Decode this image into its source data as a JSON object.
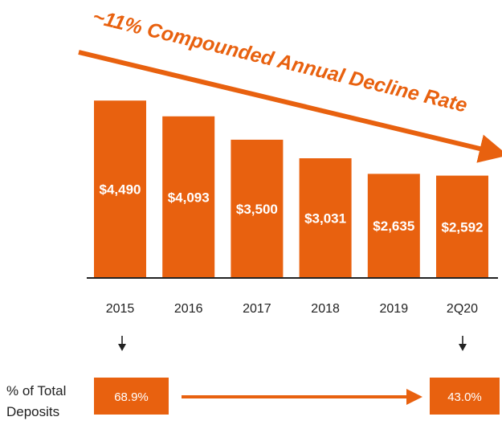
{
  "colors": {
    "accent": "#E8610F",
    "axis": "#222222",
    "text": "#222222",
    "on_accent": "#ffffff"
  },
  "chart_data": {
    "type": "bar",
    "title": "~11% Compounded Annual Decline Rate",
    "categories": [
      "2015",
      "2016",
      "2017",
      "2018",
      "2019",
      "2Q20"
    ],
    "values": [
      4490,
      4093,
      3500,
      3031,
      2635,
      2592
    ],
    "value_labels": [
      "$4,490",
      "$4,093",
      "$3,500",
      "$3,031",
      "$2,635",
      "$2,592"
    ],
    "ylim": [
      0,
      4800
    ],
    "grid": false,
    "legend": "none"
  },
  "deposits": {
    "label_line1": "% of Total",
    "label_line2": "Deposits",
    "start": {
      "category": "2015",
      "value": "68.9%"
    },
    "end": {
      "category": "2Q20",
      "value": "43.0%"
    }
  }
}
